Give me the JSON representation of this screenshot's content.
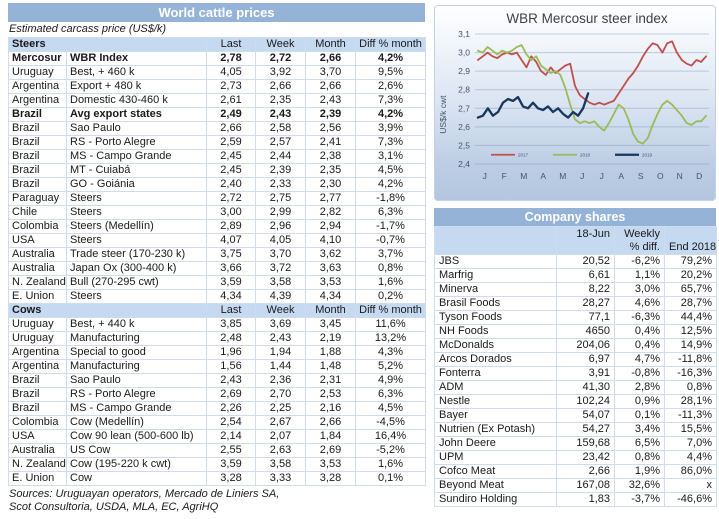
{
  "left_panel": {
    "title": "World cattle prices",
    "subtitle": "Estimated carcass price (US$/k)",
    "columns": [
      "Last",
      "Week",
      "Month",
      "Diff % month"
    ],
    "sections": [
      {
        "name": "Steers",
        "rows": [
          {
            "country": "Mercosur",
            "desc": "WBR Index",
            "last": "2,78",
            "week": "2,72",
            "month": "2,66",
            "diff": "4,2%",
            "bold": true
          },
          {
            "country": "Uruguay",
            "desc": "Best, + 460 k",
            "last": "4,05",
            "week": "3,92",
            "month": "3,70",
            "diff": "9,5%",
            "bold": false
          },
          {
            "country": "Argentina",
            "desc": "Export + 480 k",
            "last": "2,73",
            "week": "2,66",
            "month": "2,66",
            "diff": "2,6%",
            "bold": false
          },
          {
            "country": "Argentina",
            "desc": "Domestic 430-460 k",
            "last": "2,61",
            "week": "2,35",
            "month": "2,43",
            "diff": "7,3%",
            "bold": false
          },
          {
            "country": "Brazil",
            "desc": "Avg export states",
            "last": "2,49",
            "week": "2,43",
            "month": "2,39",
            "diff": "4,2%",
            "bold": true
          },
          {
            "country": "Brazil",
            "desc": "Sao Paulo",
            "last": "2,66",
            "week": "2,58",
            "month": "2,56",
            "diff": "3,9%",
            "bold": false
          },
          {
            "country": "Brazil",
            "desc": "RS - Porto Alegre",
            "last": "2,59",
            "week": "2,57",
            "month": "2,41",
            "diff": "7,3%",
            "bold": false
          },
          {
            "country": "Brazil",
            "desc": "MS - Campo Grande",
            "last": "2,45",
            "week": "2,44",
            "month": "2,38",
            "diff": "3,1%",
            "bold": false
          },
          {
            "country": "Brazil",
            "desc": "MT - Cuiabá",
            "last": "2,45",
            "week": "2,39",
            "month": "2,35",
            "diff": "4,5%",
            "bold": false
          },
          {
            "country": "Brazil",
            "desc": "GO - Goiánia",
            "last": "2,40",
            "week": "2,33",
            "month": "2,30",
            "diff": "4,2%",
            "bold": false
          },
          {
            "country": "Paraguay",
            "desc": "Steers",
            "last": "2,72",
            "week": "2,75",
            "month": "2,77",
            "diff": "-1,8%",
            "bold": false
          },
          {
            "country": "Chile",
            "desc": "Steers",
            "last": "3,00",
            "week": "2,99",
            "month": "2,82",
            "diff": "6,3%",
            "bold": false
          },
          {
            "country": "Colombia",
            "desc": "Steers (Medellín)",
            "last": "2,89",
            "week": "2,96",
            "month": "2,94",
            "diff": "-1,7%",
            "bold": false
          },
          {
            "country": "USA",
            "desc": "Steers",
            "last": "4,07",
            "week": "4,05",
            "month": "4,10",
            "diff": "-0,7%",
            "bold": false
          },
          {
            "country": "Australia",
            "desc": "Trade steer (170-230 k)",
            "last": "3,75",
            "week": "3,70",
            "month": "3,62",
            "diff": "3,7%",
            "bold": false
          },
          {
            "country": "Australia",
            "desc": "Japan Ox (300-400 k)",
            "last": "3,66",
            "week": "3,72",
            "month": "3,63",
            "diff": "0,8%",
            "bold": false
          },
          {
            "country": "N. Zealand",
            "desc": "Bull (270-295 cwt)",
            "last": "3,59",
            "week": "3,58",
            "month": "3,53",
            "diff": "1,6%",
            "bold": false
          },
          {
            "country": "E. Union",
            "desc": "Steers",
            "last": "4,34",
            "week": "4,39",
            "month": "4,34",
            "diff": "0,2%",
            "bold": false
          }
        ]
      },
      {
        "name": "Cows",
        "rows": [
          {
            "country": "Uruguay",
            "desc": "Best, + 440 k",
            "last": "3,85",
            "week": "3,69",
            "month": "3,45",
            "diff": "11,6%",
            "bold": false
          },
          {
            "country": "Uruguay",
            "desc": "Manufacturing",
            "last": "2,48",
            "week": "2,43",
            "month": "2,19",
            "diff": "13,2%",
            "bold": false
          },
          {
            "country": "Argentina",
            "desc": "Special to good",
            "last": "1,96",
            "week": "1,94",
            "month": "1,88",
            "diff": "4,3%",
            "bold": false
          },
          {
            "country": "Argentina",
            "desc": "Manufacturing",
            "last": "1,56",
            "week": "1,44",
            "month": "1,48",
            "diff": "5,2%",
            "bold": false
          },
          {
            "country": "Brazil",
            "desc": "Sao Paulo",
            "last": "2,43",
            "week": "2,36",
            "month": "2,31",
            "diff": "4,9%",
            "bold": false
          },
          {
            "country": "Brazil",
            "desc": "RS - Porto Alegre",
            "last": "2,69",
            "week": "2,70",
            "month": "2,53",
            "diff": "6,3%",
            "bold": false
          },
          {
            "country": "Brazil",
            "desc": "MS - Campo Grande",
            "last": "2,26",
            "week": "2,25",
            "month": "2,16",
            "diff": "4,5%",
            "bold": false
          },
          {
            "country": "Colombia",
            "desc": "Cow (Medellín)",
            "last": "2,54",
            "week": "2,67",
            "month": "2,66",
            "diff": "-4,5%",
            "bold": false
          },
          {
            "country": "USA",
            "desc": "Cow 90 lean (500-600 lb)",
            "last": "2,14",
            "week": "2,07",
            "month": "1,84",
            "diff": "16,4%",
            "bold": false
          },
          {
            "country": "Australia",
            "desc": "US Cow",
            "last": "2,55",
            "week": "2,63",
            "month": "2,69",
            "diff": "-5,2%",
            "bold": false
          },
          {
            "country": "N. Zealand",
            "desc": "Cow (195-220 k cwt)",
            "last": "3,59",
            "week": "3,58",
            "month": "3,53",
            "diff": "1,6%",
            "bold": false
          },
          {
            "country": "E. Union",
            "desc": "Cow",
            "last": "3,28",
            "week": "3,33",
            "month": "3,28",
            "diff": "0,1%",
            "bold": false
          }
        ]
      }
    ],
    "sources_line1": "Sources: Uruguayan operators, Mercado de Liniers SA,",
    "sources_line2": "Scot Consultoria, USDA, MLA, EC, AgriHQ"
  },
  "chart_data": {
    "type": "line",
    "title": "WBR Mercosur steer index",
    "ylabel": "US$/k cwt",
    "ylim": [
      2.4,
      3.1
    ],
    "ytick_values": [
      2.4,
      2.5,
      2.6,
      2.7,
      2.8,
      2.9,
      3.0,
      3.1
    ],
    "ytick_labels": [
      "2,4",
      "2,5",
      "2,6",
      "2,7",
      "2,8",
      "2,9",
      "3,0",
      "3,1"
    ],
    "month_labels": [
      "J",
      "F",
      "M",
      "A",
      "M",
      "J",
      "J",
      "A",
      "S",
      "O",
      "N",
      "D"
    ],
    "xlim_months": [
      0,
      12
    ],
    "grid": true,
    "legend_position": "bottom-inside",
    "text_color": "#44546a",
    "grid_color": "rgba(122,145,178,0.42)",
    "series": [
      {
        "name": "2017",
        "color": "#c0504d",
        "width": 1.8,
        "x_range": [
          0.15,
          11.85
        ],
        "values": [
          2.96,
          2.98,
          3.0,
          2.98,
          2.97,
          2.99,
          3.0,
          2.99,
          3.0,
          2.96,
          2.92,
          2.98,
          2.95,
          2.9,
          2.88,
          2.92,
          2.89,
          2.91,
          2.93,
          2.94,
          2.82,
          2.77,
          2.75,
          2.73,
          2.72,
          2.73,
          2.72,
          2.73,
          2.74,
          2.78,
          2.82,
          2.86,
          2.89,
          2.93,
          2.98,
          3.02,
          3.05,
          3.04,
          3.0,
          3.05,
          3.06,
          3.0,
          2.96,
          2.94,
          2.93,
          2.96,
          2.95,
          2.98
        ]
      },
      {
        "name": "2018",
        "color": "#9bbb59",
        "width": 1.8,
        "x_range": [
          0.15,
          11.85
        ],
        "values": [
          3.01,
          3.0,
          3.03,
          3.01,
          2.99,
          3.01,
          3.0,
          3.01,
          3.03,
          3.04,
          2.99,
          2.96,
          2.98,
          2.93,
          2.91,
          2.89,
          2.9,
          2.88,
          2.81,
          2.72,
          2.64,
          2.62,
          2.63,
          2.62,
          2.63,
          2.6,
          2.58,
          2.62,
          2.67,
          2.72,
          2.7,
          2.64,
          2.56,
          2.52,
          2.51,
          2.54,
          2.61,
          2.67,
          2.72,
          2.74,
          2.72,
          2.69,
          2.66,
          2.62,
          2.61,
          2.63,
          2.63,
          2.66
        ]
      },
      {
        "name": "2019",
        "color": "#17375e",
        "width": 2.3,
        "x_range": [
          0.15,
          5.8
        ],
        "values": [
          2.65,
          2.66,
          2.7,
          2.66,
          2.68,
          2.73,
          2.75,
          2.74,
          2.76,
          2.71,
          2.7,
          2.73,
          2.7,
          2.69,
          2.71,
          2.68,
          2.7,
          2.67,
          2.65,
          2.68,
          2.66,
          2.7,
          2.78
        ]
      }
    ]
  },
  "company_shares": {
    "title": "Company shares",
    "col_price": "18-Jun",
    "col_weekly_line1": "Weekly",
    "col_weekly_line2": "% diff.",
    "col_end": "End 2018",
    "rows": [
      {
        "name": "JBS",
        "price": "20,52",
        "weekly": "-6,2%",
        "end": "79,2%"
      },
      {
        "name": "Marfrig",
        "price": "6,61",
        "weekly": "1,1%",
        "end": "20,2%"
      },
      {
        "name": "Minerva",
        "price": "8,22",
        "weekly": "3,0%",
        "end": "65,7%"
      },
      {
        "name": "Brasil Foods",
        "price": "28,27",
        "weekly": "4,6%",
        "end": "28,7%"
      },
      {
        "name": "Tyson Foods",
        "price": "77,1",
        "weekly": "-6,3%",
        "end": "44,4%"
      },
      {
        "name": "NH Foods",
        "price": "4650",
        "weekly": "0,4%",
        "end": "12,5%"
      },
      {
        "name": "McDonalds",
        "price": "204,06",
        "weekly": "0,4%",
        "end": "14,9%"
      },
      {
        "name": "Arcos Dorados",
        "price": "6,97",
        "weekly": "4,7%",
        "end": "-11,8%"
      },
      {
        "name": "Fonterra",
        "price": "3,91",
        "weekly": "-0,8%",
        "end": "-16,3%"
      },
      {
        "name": "ADM",
        "price": "41,30",
        "weekly": "2,8%",
        "end": "0,8%"
      },
      {
        "name": "Nestle",
        "price": "102,24",
        "weekly": "0,9%",
        "end": "28,1%"
      },
      {
        "name": "Bayer",
        "price": "54,07",
        "weekly": "0,1%",
        "end": "-11,3%"
      },
      {
        "name": "Nutrien (Ex Potash)",
        "price": "54,27",
        "weekly": "3,4%",
        "end": "15,5%"
      },
      {
        "name": "John Deere",
        "price": "159,68",
        "weekly": "6,5%",
        "end": "7,0%"
      },
      {
        "name": "UPM",
        "price": "23,42",
        "weekly": "0,8%",
        "end": "4,4%"
      },
      {
        "name": "Cofco Meat",
        "price": "2,66",
        "weekly": "1,9%",
        "end": "86,0%"
      },
      {
        "name": "Beyond Meat",
        "price": "167,08",
        "weekly": "32,6%",
        "end": "x"
      },
      {
        "name": "Sundiro Holding",
        "price": "1,83",
        "weekly": "-3,7%",
        "end": "-46,6%"
      }
    ]
  },
  "colors": {
    "band_blue": "#95b3d7",
    "header_light_blue": "#c5d9f1",
    "grid_border": "#cfdcee",
    "series_red": "#c0504d",
    "series_green": "#9bbb59",
    "series_navy": "#17375e"
  }
}
